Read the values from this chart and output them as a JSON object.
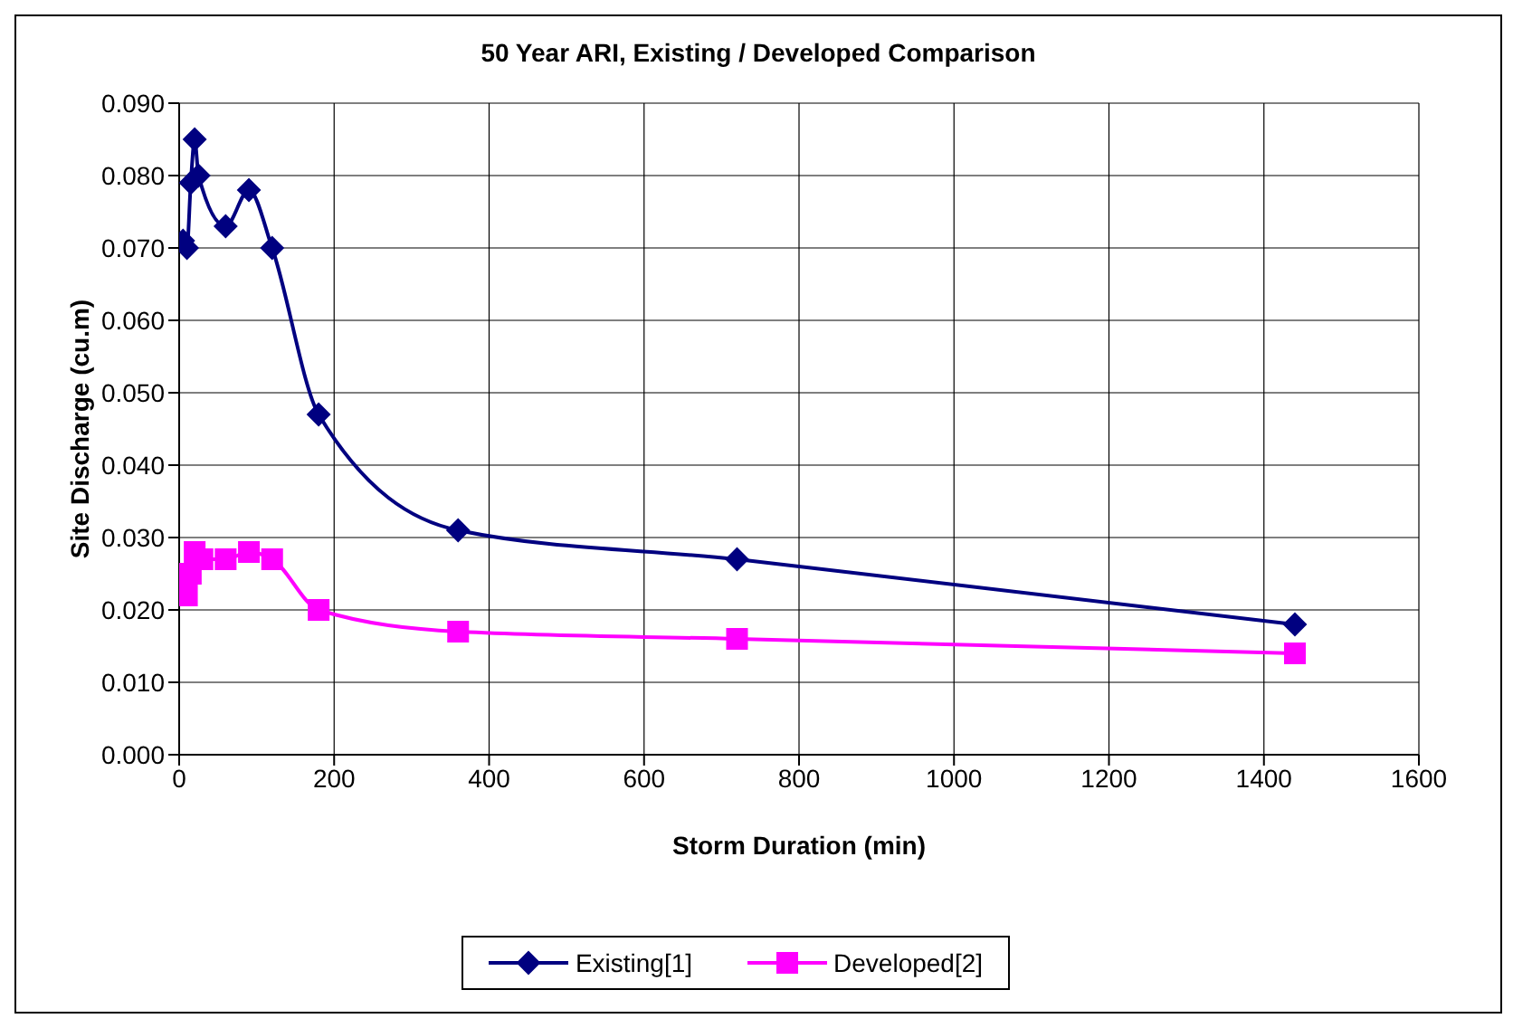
{
  "chart_data": {
    "type": "line",
    "title": "50 Year ARI, Existing / Developed Comparison",
    "xlabel": "Storm Duration (min)",
    "ylabel": "Site Discharge (cu.m)",
    "xlim": [
      0,
      1600
    ],
    "xticks": [
      0,
      200,
      400,
      600,
      800,
      1000,
      1200,
      1400,
      1600
    ],
    "ylim": [
      0,
      0.09
    ],
    "yticks": [
      {
        "value": 0,
        "label": "0.000"
      },
      {
        "value": 0.01,
        "label": "0.010"
      },
      {
        "value": 0.02,
        "label": "0.020"
      },
      {
        "value": 0.03,
        "label": "0.030"
      },
      {
        "value": 0.04,
        "label": "0.040"
      },
      {
        "value": 0.05,
        "label": "0.050"
      },
      {
        "value": 0.06,
        "label": "0.060"
      },
      {
        "value": 0.07,
        "label": "0.070"
      },
      {
        "value": 0.08,
        "label": "0.080"
      },
      {
        "value": 0.09,
        "label": "0.090"
      }
    ],
    "grid": true,
    "legend": "bottom",
    "line_style": "solid",
    "series": [
      {
        "name": "Existing[1]",
        "color": "#000080",
        "marker": "diamond",
        "x": [
          5,
          10,
          15,
          20,
          25,
          60,
          90,
          120,
          180,
          360,
          720,
          1440
        ],
        "values": [
          0.071,
          0.07,
          0.079,
          0.085,
          0.08,
          0.073,
          0.078,
          0.07,
          0.047,
          0.031,
          0.027,
          0.018
        ]
      },
      {
        "name": "Developed[2]",
        "color": "#ff00ff",
        "marker": "square",
        "x": [
          5,
          10,
          15,
          20,
          30,
          60,
          90,
          120,
          180,
          360,
          720,
          1440
        ],
        "values": [
          0.025,
          0.022,
          0.025,
          0.028,
          0.027,
          0.027,
          0.028,
          0.027,
          0.02,
          0.017,
          0.016,
          0.014
        ]
      }
    ]
  }
}
